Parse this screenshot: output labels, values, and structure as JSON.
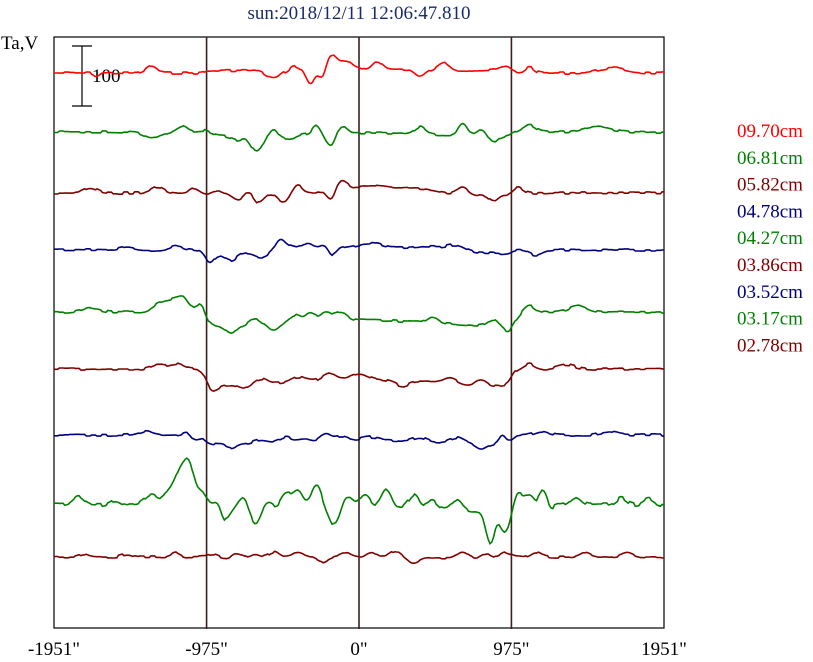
{
  "chart_data": {
    "type": "line",
    "title": "sun:2018/12/11 12:06:47.810",
    "ylabel": "Ta,V",
    "scale_bar_label": "100",
    "scale_bar_value": 100,
    "xlim": [
      -1951,
      1951
    ],
    "x_ticks": [
      {
        "value": -1951,
        "label": "-1951\""
      },
      {
        "value": -975,
        "label": "-975\""
      },
      {
        "value": 0,
        "label": "0\""
      },
      {
        "value": 975,
        "label": "975\""
      },
      {
        "value": 1951,
        "label": "1951\""
      }
    ],
    "vertical_lines": [
      -975,
      0,
      975
    ],
    "grid": false,
    "legend_position": "right",
    "series": [
      {
        "name": "09.70cm",
        "color": "#ff0000",
        "offset": 73,
        "features": [
          {
            "x": 0.07,
            "w": 0.006,
            "a": -3
          },
          {
            "x": 0.16,
            "w": 0.012,
            "a": 7
          },
          {
            "x": 0.36,
            "w": 0.018,
            "a": -8
          },
          {
            "x": 0.39,
            "w": 0.012,
            "a": 5
          },
          {
            "x": 0.385,
            "w": 0.008,
            "a": -3
          },
          {
            "x": 0.42,
            "w": 0.009,
            "a": -15
          },
          {
            "x": 0.44,
            "w": 0.009,
            "a": -14
          },
          {
            "x": 0.453,
            "w": 0.015,
            "a": 15
          },
          {
            "x": 0.48,
            "w": 0.012,
            "a": 7
          },
          {
            "x": 0.53,
            "w": 0.011,
            "a": 8
          },
          {
            "x": 0.6,
            "w": 0.012,
            "a": -7
          },
          {
            "x": 0.64,
            "w": 0.012,
            "a": 7
          },
          {
            "x": 0.74,
            "w": 0.014,
            "a": 4
          },
          {
            "x": 0.78,
            "w": 0.01,
            "a": 6
          },
          {
            "x": 0.915,
            "w": 0.03,
            "a": 5
          }
        ]
      },
      {
        "name": "06.81cm",
        "color": "#008000",
        "offset": 132,
        "features": [
          {
            "x": 0.16,
            "w": 0.018,
            "a": -6
          },
          {
            "x": 0.21,
            "w": 0.012,
            "a": 6
          },
          {
            "x": 0.25,
            "w": 0.015,
            "a": 3
          },
          {
            "x": 0.3,
            "w": 0.012,
            "a": -4
          },
          {
            "x": 0.33,
            "w": 0.012,
            "a": -13
          },
          {
            "x": 0.34,
            "w": 0.012,
            "a": -6
          },
          {
            "x": 0.36,
            "w": 0.01,
            "a": 8
          },
          {
            "x": 0.38,
            "w": 0.012,
            "a": 9
          },
          {
            "x": 0.38,
            "w": 0.015,
            "a": -13
          },
          {
            "x": 0.43,
            "w": 0.009,
            "a": 8
          },
          {
            "x": 0.455,
            "w": 0.012,
            "a": -14
          },
          {
            "x": 0.47,
            "w": 0.012,
            "a": 9
          },
          {
            "x": 0.6,
            "w": 0.012,
            "a": 7
          },
          {
            "x": 0.67,
            "w": 0.01,
            "a": 11
          },
          {
            "x": 0.7,
            "w": 0.012,
            "a": 6
          },
          {
            "x": 0.72,
            "w": 0.01,
            "a": -7
          },
          {
            "x": 0.78,
            "w": 0.014,
            "a": 7
          },
          {
            "x": 0.89,
            "w": 0.03,
            "a": 5
          }
        ]
      },
      {
        "name": "05.82cm",
        "color": "#800000",
        "offset": 193,
        "features": [
          {
            "x": 0.06,
            "w": 0.015,
            "a": 5
          },
          {
            "x": 0.17,
            "w": 0.015,
            "a": 6
          },
          {
            "x": 0.23,
            "w": 0.01,
            "a": 5
          },
          {
            "x": 0.27,
            "w": 0.015,
            "a": 5
          },
          {
            "x": 0.305,
            "w": 0.012,
            "a": -6
          },
          {
            "x": 0.32,
            "w": 0.014,
            "a": 5
          },
          {
            "x": 0.335,
            "w": 0.012,
            "a": -10
          },
          {
            "x": 0.375,
            "w": 0.012,
            "a": -9
          },
          {
            "x": 0.4,
            "w": 0.01,
            "a": 8
          },
          {
            "x": 0.455,
            "w": 0.01,
            "a": -12
          },
          {
            "x": 0.47,
            "w": 0.015,
            "a": 10
          },
          {
            "x": 0.52,
            "w": 0.04,
            "a": 5
          },
          {
            "x": 0.6,
            "w": 0.04,
            "a": 4
          },
          {
            "x": 0.67,
            "w": 0.012,
            "a": 7
          },
          {
            "x": 0.72,
            "w": 0.01,
            "a": -6
          },
          {
            "x": 0.76,
            "w": 0.012,
            "a": 6
          }
        ]
      },
      {
        "name": "04.78cm",
        "color": "#000080",
        "offset": 250,
        "features": [
          {
            "x": 0.12,
            "w": 0.018,
            "a": 3
          },
          {
            "x": 0.2,
            "w": 0.015,
            "a": 4
          },
          {
            "x": 0.255,
            "w": 0.01,
            "a": -10
          },
          {
            "x": 0.29,
            "w": 0.014,
            "a": -7
          },
          {
            "x": 0.34,
            "w": 0.015,
            "a": -5
          },
          {
            "x": 0.37,
            "w": 0.01,
            "a": 8
          },
          {
            "x": 0.38,
            "w": 0.015,
            "a": 5
          },
          {
            "x": 0.415,
            "w": 0.015,
            "a": 6
          },
          {
            "x": 0.445,
            "w": 0.01,
            "a": 6
          },
          {
            "x": 0.455,
            "w": 0.01,
            "a": -8
          },
          {
            "x": 0.52,
            "w": 0.03,
            "a": 5
          },
          {
            "x": 0.62,
            "w": 0.04,
            "a": 4
          },
          {
            "x": 0.66,
            "w": 0.02,
            "a": 5
          },
          {
            "x": 0.79,
            "w": 0.015,
            "a": -5
          }
        ]
      },
      {
        "name": "04.27cm",
        "color": "#008000",
        "offset": 312,
        "features": [
          {
            "x": 0.06,
            "w": 0.02,
            "a": 4
          },
          {
            "x": 0.17,
            "w": 0.015,
            "a": 7
          },
          {
            "x": 0.19,
            "w": 0.014,
            "a": 10
          },
          {
            "x": 0.21,
            "w": 0.013,
            "a": 14
          },
          {
            "x": 0.24,
            "w": 0.012,
            "a": 8
          },
          {
            "x": 0.29,
            "w": 0.012,
            "a": -8
          },
          {
            "x": 0.33,
            "w": 0.012,
            "a": 6
          },
          {
            "x": 0.36,
            "w": 0.012,
            "a": -6
          },
          {
            "x": 0.395,
            "w": 0.012,
            "a": 7
          },
          {
            "x": 0.42,
            "w": 0.012,
            "a": 8
          },
          {
            "x": 0.445,
            "w": 0.012,
            "a": 9
          },
          {
            "x": 0.47,
            "w": 0.014,
            "a": 8
          },
          {
            "x": 0.62,
            "w": 0.012,
            "a": 6
          },
          {
            "x": 0.72,
            "w": 0.012,
            "a": 7
          },
          {
            "x": 0.75,
            "w": 0.014,
            "a": -8
          },
          {
            "x": 0.78,
            "w": 0.012,
            "a": 6
          },
          {
            "x": 0.86,
            "w": 0.02,
            "a": 6
          }
        ]
      },
      {
        "name": "03.86cm",
        "color": "#800000",
        "offset": 369,
        "features": [
          {
            "x": 0.17,
            "w": 0.015,
            "a": 4
          },
          {
            "x": 0.2,
            "w": 0.015,
            "a": 5
          },
          {
            "x": 0.26,
            "w": 0.012,
            "a": -5
          },
          {
            "x": 0.31,
            "w": 0.012,
            "a": -4
          },
          {
            "x": 0.34,
            "w": 0.012,
            "a": 5
          },
          {
            "x": 0.4,
            "w": 0.015,
            "a": 5
          },
          {
            "x": 0.45,
            "w": 0.015,
            "a": 7
          },
          {
            "x": 0.5,
            "w": 0.02,
            "a": 6
          },
          {
            "x": 0.57,
            "w": 0.015,
            "a": -5
          },
          {
            "x": 0.65,
            "w": 0.015,
            "a": 5
          },
          {
            "x": 0.7,
            "w": 0.012,
            "a": 6
          },
          {
            "x": 0.78,
            "w": 0.012,
            "a": 5
          },
          {
            "x": 0.84,
            "w": 0.02,
            "a": 4
          }
        ]
      },
      {
        "name": "03.52cm",
        "color": "#000080",
        "offset": 435,
        "features": [
          {
            "x": 0.15,
            "w": 0.015,
            "a": 4
          },
          {
            "x": 0.22,
            "w": 0.01,
            "a": 5
          },
          {
            "x": 0.23,
            "w": 0.012,
            "a": -6
          },
          {
            "x": 0.29,
            "w": 0.012,
            "a": -4
          },
          {
            "x": 0.34,
            "w": 0.015,
            "a": 3
          },
          {
            "x": 0.38,
            "w": 0.015,
            "a": 5
          },
          {
            "x": 0.41,
            "w": 0.012,
            "a": 3
          },
          {
            "x": 0.445,
            "w": 0.01,
            "a": 6
          },
          {
            "x": 0.47,
            "w": 0.015,
            "a": 4
          },
          {
            "x": 0.52,
            "w": 0.02,
            "a": 3
          },
          {
            "x": 0.6,
            "w": 0.015,
            "a": 4
          },
          {
            "x": 0.66,
            "w": 0.015,
            "a": 5
          },
          {
            "x": 0.7,
            "w": 0.012,
            "a": -5
          },
          {
            "x": 0.735,
            "w": 0.008,
            "a": 8
          },
          {
            "x": 0.8,
            "w": 0.015,
            "a": 4
          },
          {
            "x": 0.91,
            "w": 0.02,
            "a": 3
          }
        ]
      },
      {
        "name": "03.17cm",
        "color": "#008000",
        "offset": 505,
        "features": [
          {
            "x": 0.04,
            "w": 0.012,
            "a": 8
          },
          {
            "x": 0.1,
            "w": 0.012,
            "a": 5
          },
          {
            "x": 0.16,
            "w": 0.015,
            "a": 10
          },
          {
            "x": 0.19,
            "w": 0.012,
            "a": 14
          },
          {
            "x": 0.205,
            "w": 0.01,
            "a": 20
          },
          {
            "x": 0.22,
            "w": 0.012,
            "a": 33
          },
          {
            "x": 0.245,
            "w": 0.012,
            "a": 10
          },
          {
            "x": 0.22,
            "w": 0.02,
            "a": 12
          },
          {
            "x": 0.27,
            "w": 0.015,
            "a": 12
          },
          {
            "x": 0.28,
            "w": 0.01,
            "a": -15
          },
          {
            "x": 0.31,
            "w": 0.012,
            "a": 12
          },
          {
            "x": 0.33,
            "w": 0.012,
            "a": -13
          },
          {
            "x": 0.35,
            "w": 0.012,
            "a": 8
          },
          {
            "x": 0.38,
            "w": 0.012,
            "a": 14
          },
          {
            "x": 0.4,
            "w": 0.012,
            "a": 18
          },
          {
            "x": 0.43,
            "w": 0.012,
            "a": 22
          },
          {
            "x": 0.46,
            "w": 0.012,
            "a": -18
          },
          {
            "x": 0.48,
            "w": 0.012,
            "a": 10
          },
          {
            "x": 0.51,
            "w": 0.012,
            "a": 12
          },
          {
            "x": 0.545,
            "w": 0.012,
            "a": 18
          },
          {
            "x": 0.59,
            "w": 0.012,
            "a": 14
          },
          {
            "x": 0.62,
            "w": 0.012,
            "a": 8
          },
          {
            "x": 0.66,
            "w": 0.012,
            "a": 10
          },
          {
            "x": 0.715,
            "w": 0.01,
            "a": -30
          },
          {
            "x": 0.74,
            "w": 0.012,
            "a": -20
          },
          {
            "x": 0.76,
            "w": 0.01,
            "a": 12
          },
          {
            "x": 0.78,
            "w": 0.012,
            "a": 12
          },
          {
            "x": 0.795,
            "w": 0.01,
            "a": -20
          },
          {
            "x": 0.8,
            "w": 0.012,
            "a": 32
          },
          {
            "x": 0.81,
            "w": 0.01,
            "a": -10
          },
          {
            "x": 0.855,
            "w": 0.012,
            "a": 8
          },
          {
            "x": 0.93,
            "w": 0.012,
            "a": 7
          },
          {
            "x": 0.975,
            "w": 0.012,
            "a": 6
          }
        ]
      },
      {
        "name": "02.78cm",
        "color": "#800000",
        "offset": 557,
        "features": [
          {
            "x": 0.05,
            "w": 0.01,
            "a": 3
          },
          {
            "x": 0.12,
            "w": 0.012,
            "a": 3
          },
          {
            "x": 0.2,
            "w": 0.01,
            "a": 4
          },
          {
            "x": 0.26,
            "w": 0.012,
            "a": 4
          },
          {
            "x": 0.3,
            "w": 0.012,
            "a": 5
          },
          {
            "x": 0.33,
            "w": 0.012,
            "a": 4
          },
          {
            "x": 0.36,
            "w": 0.012,
            "a": 6
          },
          {
            "x": 0.4,
            "w": 0.012,
            "a": 5
          },
          {
            "x": 0.44,
            "w": 0.012,
            "a": -5
          },
          {
            "x": 0.48,
            "w": 0.012,
            "a": 4
          },
          {
            "x": 0.52,
            "w": 0.012,
            "a": 5
          },
          {
            "x": 0.56,
            "w": 0.012,
            "a": 6
          },
          {
            "x": 0.59,
            "w": 0.012,
            "a": -5
          },
          {
            "x": 0.67,
            "w": 0.012,
            "a": 6
          },
          {
            "x": 0.71,
            "w": 0.012,
            "a": 5
          },
          {
            "x": 0.74,
            "w": 0.012,
            "a": 6
          },
          {
            "x": 0.79,
            "w": 0.012,
            "a": 5
          },
          {
            "x": 0.87,
            "w": 0.012,
            "a": 4
          },
          {
            "x": 0.94,
            "w": 0.012,
            "a": 4
          }
        ]
      }
    ]
  }
}
